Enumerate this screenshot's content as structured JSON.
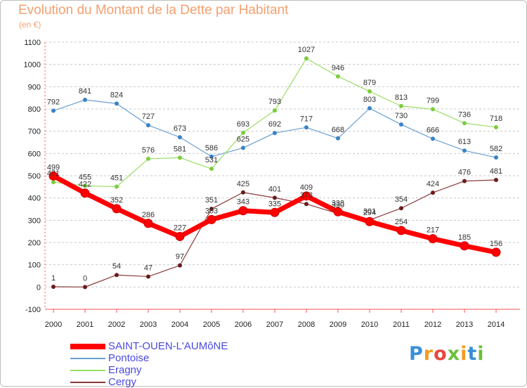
{
  "title": "Evolution du Montant de la Dette par Habitant",
  "unit_label": "(en €)",
  "logo": {
    "text": "Proxiti",
    "colors": [
      "#3a8fd8",
      "#f39c1f",
      "#e8463c",
      "#6cbf3c",
      "#f39c1f",
      "#3a8fd8",
      "#6cbf3c"
    ]
  },
  "chart_data": {
    "type": "line",
    "title": "Evolution du Montant de la Dette par Habitant",
    "ylabel": "(en €)",
    "xlabel": "",
    "x": [
      "2000",
      "2001",
      "2002",
      "2003",
      "2004",
      "2005",
      "2006",
      "2007",
      "2008",
      "2009",
      "2010",
      "2011",
      "2012",
      "2013",
      "2014"
    ],
    "ylim": [
      -100,
      1100
    ],
    "yticks": [
      "-100",
      "0",
      "100",
      "200",
      "300",
      "400",
      "500",
      "600",
      "700",
      "800",
      "900",
      "1000",
      "1100"
    ],
    "grid": "horizontal dashed",
    "legend_position": "bottom-left",
    "series": [
      {
        "name": "SAINT-OUEN-L'AUMôNE",
        "color": "#ff0000",
        "dot": "#ff0000",
        "width": 7,
        "values": [
          499,
          422,
          352,
          286,
          227,
          303,
          343,
          335,
          409,
          338,
          294,
          254,
          217,
          185,
          156
        ]
      },
      {
        "name": "Pontoise",
        "color": "#6a9fd0",
        "dot": "#3a83c8",
        "width": 1.2,
        "values": [
          792,
          841,
          824,
          727,
          673,
          586,
          625,
          692,
          717,
          668,
          803,
          730,
          666,
          613,
          582
        ]
      },
      {
        "name": "Eragny",
        "color": "#99dd66",
        "dot": "#7ccd3c",
        "width": 1.2,
        "values": [
          471,
          455,
          451,
          576,
          581,
          531,
          693,
          793,
          1027,
          946,
          879,
          813,
          799,
          736,
          718
        ]
      },
      {
        "name": "Cergy",
        "color": "#8a3a3a",
        "dot": "#6a1a1a",
        "width": 1.2,
        "values": [
          1,
          0,
          54,
          47,
          97,
          351,
          425,
          401,
          373,
          330,
          301,
          354,
          424,
          476,
          481
        ]
      }
    ]
  }
}
